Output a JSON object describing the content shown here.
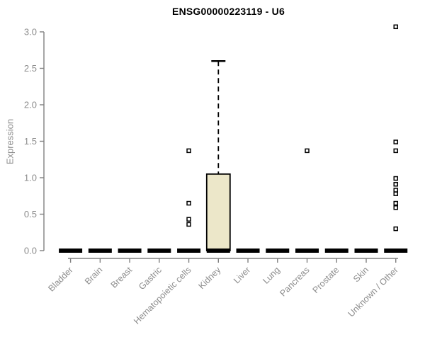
{
  "chart_data": {
    "type": "boxplot",
    "title": "ENSG00000223119 - U6",
    "ylabel": "Expression",
    "xlabel": "",
    "ylim": [
      0.0,
      3.0
    ],
    "yticks": [
      "0.0",
      "0.5",
      "1.0",
      "1.5",
      "2.0",
      "2.5",
      "3.0"
    ],
    "grid": false,
    "legend": null,
    "categories": [
      "Bladder",
      "Brain",
      "Breast",
      "Gastric",
      "Hematopoietic cells",
      "Kidney",
      "Liver",
      "Lung",
      "Pancreas",
      "Prostate",
      "Skin",
      "Unknown / Other"
    ],
    "series": [
      {
        "category": "Bladder",
        "low": 0,
        "q1": 0,
        "median": 0,
        "q3": 0,
        "high": 0,
        "outliers": []
      },
      {
        "category": "Brain",
        "low": 0,
        "q1": 0,
        "median": 0,
        "q3": 0,
        "high": 0,
        "outliers": []
      },
      {
        "category": "Breast",
        "low": 0,
        "q1": 0,
        "median": 0,
        "q3": 0,
        "high": 0,
        "outliers": []
      },
      {
        "category": "Gastric",
        "low": 0,
        "q1": 0,
        "median": 0,
        "q3": 0,
        "high": 0,
        "outliers": []
      },
      {
        "category": "Hematopoietic cells",
        "low": 0,
        "q1": 0,
        "median": 0,
        "q3": 0,
        "high": 0,
        "outliers": [
          0.36,
          0.43,
          0.65,
          1.37
        ]
      },
      {
        "category": "Kidney",
        "low": 0,
        "q1": 0,
        "median": 0,
        "q3": 1.05,
        "high": 2.6,
        "outliers": []
      },
      {
        "category": "Liver",
        "low": 0,
        "q1": 0,
        "median": 0,
        "q3": 0,
        "high": 0,
        "outliers": []
      },
      {
        "category": "Lung",
        "low": 0,
        "q1": 0,
        "median": 0,
        "q3": 0,
        "high": 0,
        "outliers": []
      },
      {
        "category": "Pancreas",
        "low": 0,
        "q1": 0,
        "median": 0,
        "q3": 0,
        "high": 0,
        "outliers": [
          1.37
        ]
      },
      {
        "category": "Prostate",
        "low": 0,
        "q1": 0,
        "median": 0,
        "q3": 0,
        "high": 0,
        "outliers": []
      },
      {
        "category": "Skin",
        "low": 0,
        "q1": 0,
        "median": 0,
        "q3": 0,
        "high": 0,
        "outliers": []
      },
      {
        "category": "Unknown / Other",
        "low": 0,
        "q1": 0,
        "median": 0,
        "q3": 0,
        "high": 0,
        "outliers": [
          0.3,
          0.59,
          0.65,
          0.78,
          0.83,
          0.91,
          0.99,
          1.37,
          1.49,
          3.07
        ]
      }
    ],
    "colors": {
      "box_fill": "#ece7c9",
      "box_border": "#000000",
      "median": "#000000",
      "whisker": "#000000",
      "outlier_fill": "#ffffff",
      "outlier_border": "#000000",
      "axis": "#808080",
      "tick_text": "#8c8c8c",
      "title_text": "#000000",
      "background": "#ffffff"
    }
  }
}
